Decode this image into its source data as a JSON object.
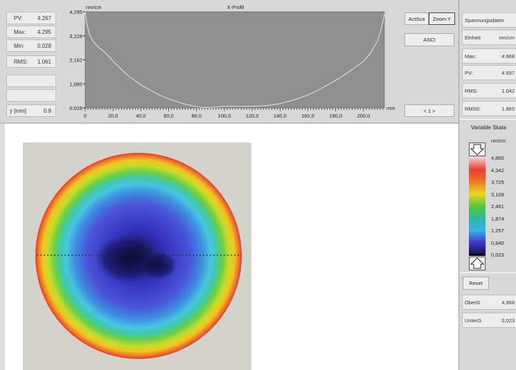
{
  "stats": {
    "pv": {
      "label": "PV:",
      "value": "4.267"
    },
    "max": {
      "label": "Max:",
      "value": "4.295"
    },
    "min": {
      "label": "Min:",
      "value": "0.028"
    },
    "rms": {
      "label": "RMS:",
      "value": "1.061"
    },
    "y": {
      "label": "y [mm]",
      "value": "0.9"
    }
  },
  "chart_data": {
    "type": "line",
    "title": "X-Profil",
    "ylabel": "nm/cm",
    "xlabel": "mm",
    "y_ticks": [
      "4,295",
      "3,228",
      "2,162",
      "1,095",
      "0,028"
    ],
    "x_ticks": [
      "0",
      "20,0",
      "40,0",
      "60,0",
      "80,0",
      "100,0",
      "120,0",
      "140,0",
      "160,0",
      "180,0",
      "200,0"
    ],
    "xlim": [
      0,
      215
    ],
    "ylim": [
      0.028,
      4.295
    ],
    "series": [
      {
        "x": [
          0,
          1,
          3,
          6,
          10,
          15,
          20,
          30,
          40,
          50,
          60,
          70,
          80,
          85,
          90,
          100,
          110,
          120,
          130,
          140,
          150,
          160,
          170,
          180,
          190,
          200,
          205,
          210,
          213,
          215
        ],
        "y": [
          4.295,
          3.8,
          3.3,
          2.95,
          2.7,
          2.45,
          2.1,
          1.5,
          1.05,
          0.7,
          0.42,
          0.22,
          0.08,
          0.04,
          0.05,
          0.1,
          0.1,
          0.1,
          0.13,
          0.22,
          0.38,
          0.6,
          0.9,
          1.25,
          1.65,
          2.1,
          2.45,
          3.0,
          3.6,
          4.2
        ]
      }
    ]
  },
  "controls": {
    "actsca": "ActSca",
    "zoom_y": "Zoom Y",
    "ascii": "ASCI",
    "page": "< 1 >"
  },
  "spannungsdaten": {
    "header": "Spannungsdaten",
    "einheit": {
      "label": "Einheit",
      "value": "nm/cm"
    },
    "max": {
      "label": "Max:",
      "value": "4.968"
    },
    "pv": {
      "label": "PV:",
      "value": "4.937"
    },
    "rms": {
      "label": "RMS:",
      "value": "1.042"
    },
    "rms0": {
      "label": "RMS0:",
      "value": "1.865"
    }
  },
  "scale": {
    "title": "Variable Skala",
    "unit": "nm/cm",
    "labels": [
      "4,860",
      "4,342",
      "3,725",
      "3,108",
      "2,491",
      "1,874",
      "1,257",
      "0,640",
      "0,023"
    ],
    "colors": [
      "#f6c9cc",
      "#e83c3a",
      "#ee7a22",
      "#e9d824",
      "#5ac43a",
      "#2bb8a0",
      "#3ab3e6",
      "#3b3ad1",
      "#141248"
    ]
  },
  "grenzen": {
    "reset": "Reset",
    "oberg": {
      "label": "OberG",
      "value": "4,968"
    },
    "unterg": {
      "label": "UnterG",
      "value": "0,023"
    }
  }
}
